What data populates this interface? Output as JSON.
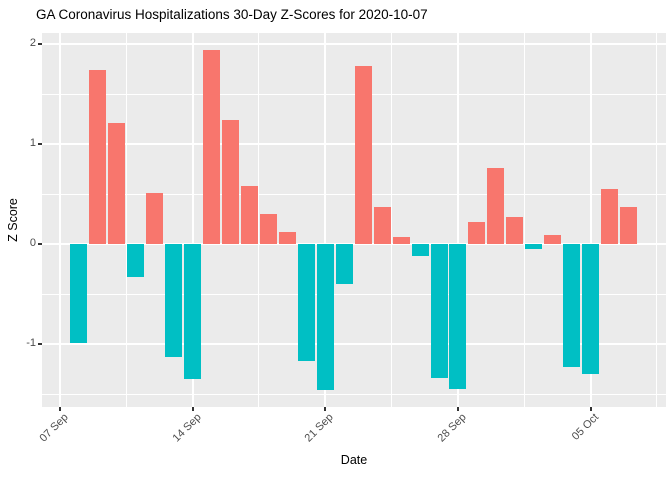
{
  "title": "GA Coronavirus Hospitalizations 30-Day Z-Scores for 2020-10-07",
  "chart_data": {
    "type": "bar",
    "title": "GA Coronavirus Hospitalizations 30-Day Z-Scores for 2020-10-07",
    "xlabel": "Date",
    "ylabel": "Z Score",
    "legend": "none",
    "grid": "major+minor",
    "ylim": [
      -1.63,
      2.11
    ],
    "categories": [
      "08 Sep",
      "09 Sep",
      "10 Sep",
      "11 Sep",
      "12 Sep",
      "13 Sep",
      "14 Sep",
      "15 Sep",
      "16 Sep",
      "17 Sep",
      "18 Sep",
      "19 Sep",
      "20 Sep",
      "21 Sep",
      "22 Sep",
      "23 Sep",
      "24 Sep",
      "25 Sep",
      "26 Sep",
      "27 Sep",
      "28 Sep",
      "29 Sep",
      "30 Sep",
      "01 Oct",
      "02 Oct",
      "03 Oct",
      "04 Oct",
      "05 Oct",
      "06 Oct",
      "07 Oct"
    ],
    "values": [
      -0.99,
      1.74,
      1.21,
      -0.33,
      0.51,
      -1.13,
      -1.35,
      1.94,
      1.24,
      0.58,
      0.3,
      0.12,
      -1.17,
      -1.46,
      -0.4,
      1.78,
      0.37,
      0.07,
      -0.12,
      -1.34,
      -1.45,
      0.22,
      0.76,
      0.27,
      -0.05,
      0.09,
      -1.23,
      -1.3,
      0.55,
      0.37
    ],
    "x_tick_labels": [
      "07 Sep",
      "14 Sep",
      "21 Sep",
      "28 Sep",
      "05 Oct"
    ],
    "x_tick_days": [
      0,
      7,
      14,
      21,
      28
    ],
    "x_minor_days": [
      3.5,
      10.5,
      17.5,
      24.5,
      31.5
    ],
    "y_ticks": [
      2,
      1,
      0,
      -1
    ],
    "y_tick_labels": [
      "2",
      "1",
      "0",
      "-1"
    ],
    "y_minor": [
      1.5,
      0.5,
      -0.5,
      -1.5
    ],
    "colors": {
      "positive": "#F8766D",
      "negative": "#00BFC4",
      "panel_background": "#EBEBEB",
      "gridline": "#FFFFFF",
      "axis_text": "#4D4D4D",
      "tick_mark": "#333333",
      "title_text": "#000000"
    }
  }
}
